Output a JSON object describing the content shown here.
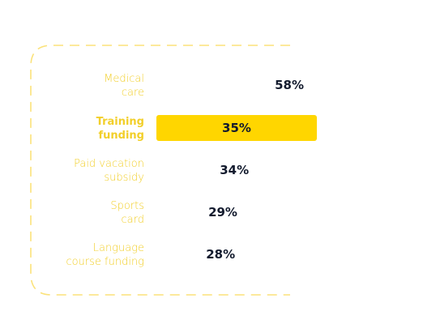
{
  "chart_data": {
    "type": "bar",
    "orientation": "horizontal",
    "categories": [
      [
        "Medical",
        "care"
      ],
      [
        "Training",
        "funding"
      ],
      [
        "Paid vacation",
        "subsidy"
      ],
      [
        "Sports",
        "card"
      ],
      [
        "Language",
        "course funding"
      ]
    ],
    "values": [
      58,
      35,
      34,
      29,
      28
    ],
    "value_labels": [
      "58%",
      "35%",
      "34%",
      "29%",
      "28%"
    ],
    "highlighted_index": 1,
    "title": "",
    "xlabel": "",
    "ylabel": "",
    "grid": false,
    "legend": "none",
    "colors": {
      "accent": "#FFD600",
      "label": "#F2CF2A",
      "value_text": "#131B2E",
      "frame": "#FBE27A"
    }
  }
}
